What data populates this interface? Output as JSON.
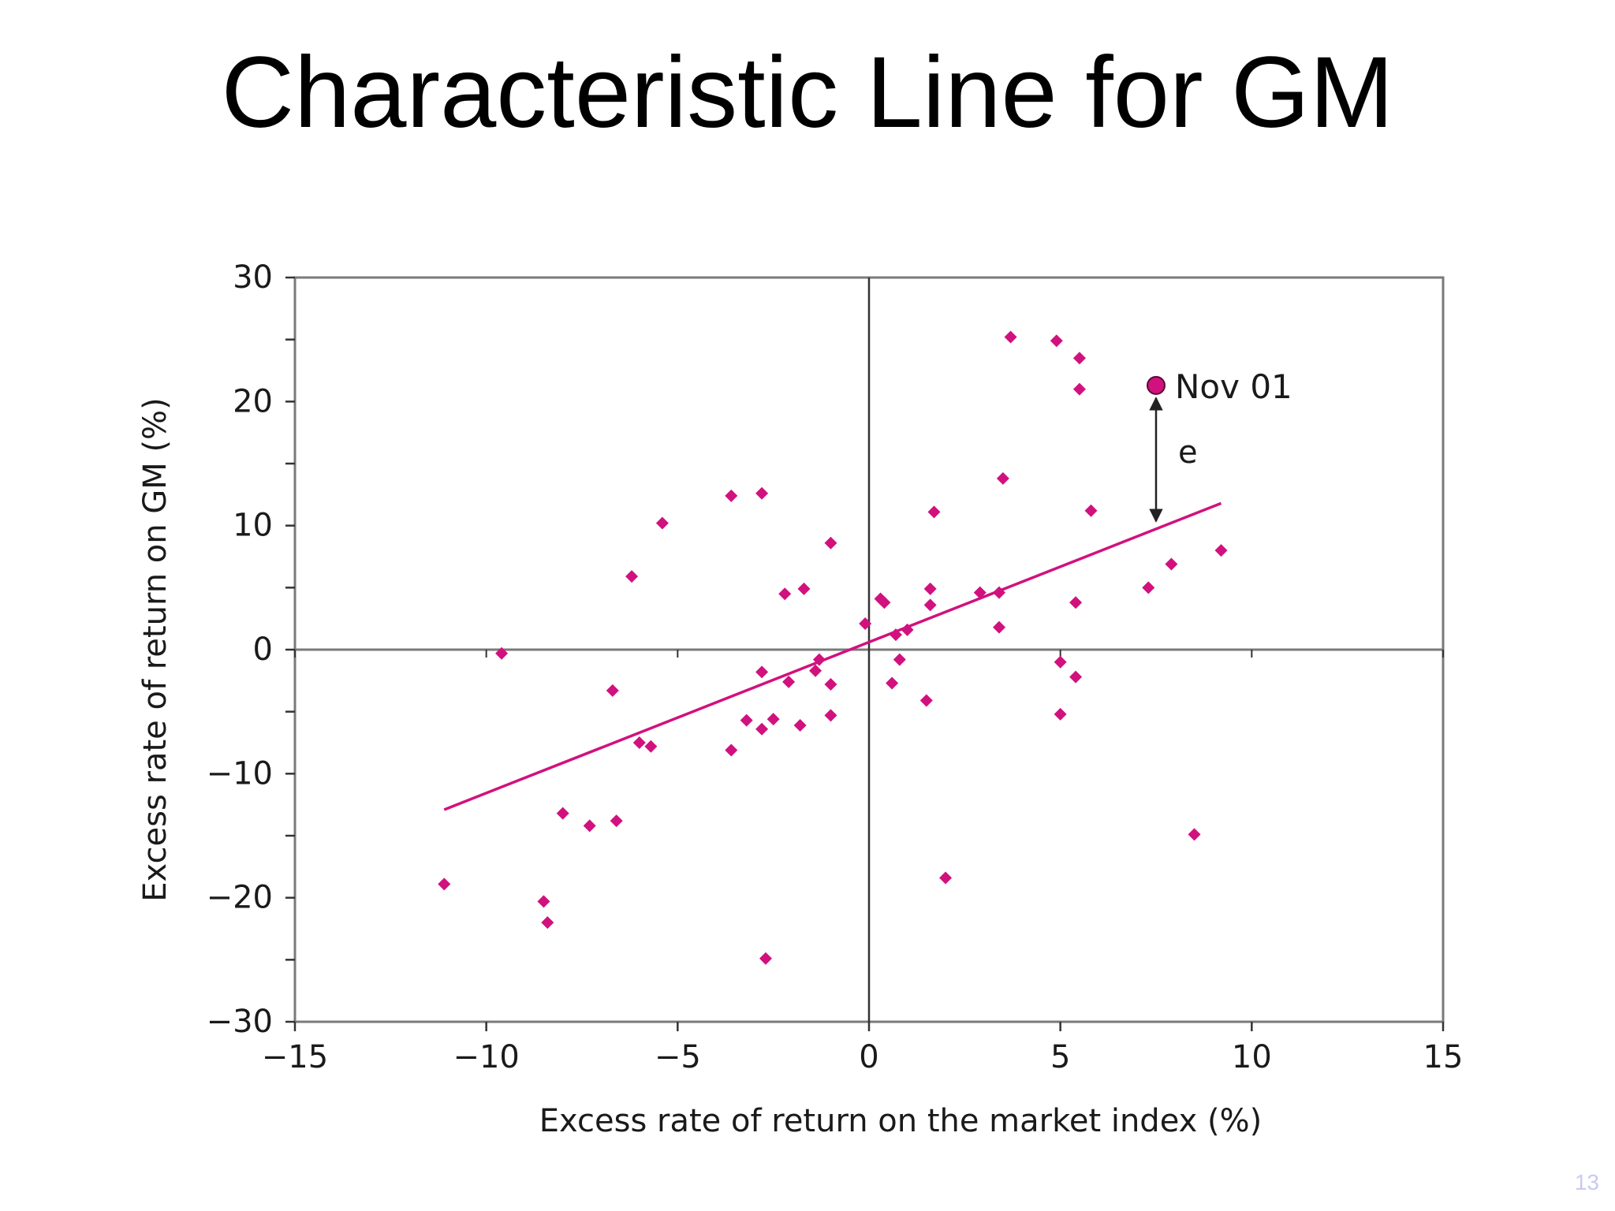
{
  "slide": {
    "title": "Characteristic Line for GM",
    "page_number": "13"
  },
  "colors": {
    "accent": "#d1117e",
    "axis": "#333333",
    "frame": "#7a7a7a",
    "text": "#1a1a1a"
  },
  "chart_data": {
    "type": "scatter",
    "title": "",
    "xlabel": "Excess rate of return on the market index (%)",
    "ylabel": "Excess rate of return on GM (%)",
    "xlim": [
      -15,
      15
    ],
    "ylim": [
      -30,
      30
    ],
    "xticks": [
      -15,
      -10,
      -5,
      0,
      5,
      10,
      15
    ],
    "xtick_labels": [
      "−15",
      "−10",
      "−5",
      "0",
      "5",
      "10",
      "15"
    ],
    "yticks": [
      -30,
      -20,
      -10,
      0,
      10,
      20,
      30
    ],
    "ytick_labels": [
      "−30",
      "−20",
      "−10",
      "0",
      "10",
      "20",
      "30"
    ],
    "grid": false,
    "marker": "diamond",
    "points": [
      {
        "x": 3.7,
        "y": 25.2
      },
      {
        "x": 4.9,
        "y": 24.9
      },
      {
        "x": 5.5,
        "y": 23.5
      },
      {
        "x": 5.5,
        "y": 21.0
      },
      {
        "x": -3.6,
        "y": 12.4
      },
      {
        "x": -2.8,
        "y": 12.6
      },
      {
        "x": -5.4,
        "y": 10.2
      },
      {
        "x": 3.5,
        "y": 13.8
      },
      {
        "x": 5.8,
        "y": 11.2
      },
      {
        "x": 1.7,
        "y": 11.1
      },
      {
        "x": -1.0,
        "y": 8.6
      },
      {
        "x": 9.2,
        "y": 8.0
      },
      {
        "x": -6.2,
        "y": 5.9
      },
      {
        "x": -2.2,
        "y": 4.5
      },
      {
        "x": -1.7,
        "y": 4.9
      },
      {
        "x": 7.9,
        "y": 6.9
      },
      {
        "x": 7.3,
        "y": 5.0
      },
      {
        "x": 1.6,
        "y": 4.9
      },
      {
        "x": 1.6,
        "y": 3.6
      },
      {
        "x": 2.9,
        "y": 4.6
      },
      {
        "x": 3.4,
        "y": 4.6
      },
      {
        "x": 5.4,
        "y": 3.8
      },
      {
        "x": 0.3,
        "y": 4.1
      },
      {
        "x": 0.4,
        "y": 3.8
      },
      {
        "x": -0.1,
        "y": 2.1
      },
      {
        "x": 3.4,
        "y": 1.8
      },
      {
        "x": 1.0,
        "y": 1.6
      },
      {
        "x": 0.7,
        "y": 1.2
      },
      {
        "x": -9.6,
        "y": -0.3
      },
      {
        "x": -1.3,
        "y": -0.8
      },
      {
        "x": 0.8,
        "y": -0.8
      },
      {
        "x": -1.4,
        "y": -1.7
      },
      {
        "x": -2.8,
        "y": -1.8
      },
      {
        "x": -2.1,
        "y": -2.6
      },
      {
        "x": -1.0,
        "y": -2.8
      },
      {
        "x": 0.6,
        "y": -2.7
      },
      {
        "x": 5.0,
        "y": -1.0
      },
      {
        "x": 5.4,
        "y": -2.2
      },
      {
        "x": -6.7,
        "y": -3.3
      },
      {
        "x": 1.5,
        "y": -4.1
      },
      {
        "x": -1.0,
        "y": -5.3
      },
      {
        "x": 5.0,
        "y": -5.2
      },
      {
        "x": -3.2,
        "y": -5.7
      },
      {
        "x": -2.5,
        "y": -5.6
      },
      {
        "x": -2.8,
        "y": -6.4
      },
      {
        "x": -1.8,
        "y": -6.1
      },
      {
        "x": -6.0,
        "y": -7.5
      },
      {
        "x": -5.7,
        "y": -7.8
      },
      {
        "x": -3.6,
        "y": -8.1
      },
      {
        "x": -8.0,
        "y": -13.2
      },
      {
        "x": -7.3,
        "y": -14.2
      },
      {
        "x": -6.6,
        "y": -13.8
      },
      {
        "x": 8.5,
        "y": -14.9
      },
      {
        "x": -11.1,
        "y": -18.9
      },
      {
        "x": -8.5,
        "y": -20.3
      },
      {
        "x": -8.4,
        "y": -22.0
      },
      {
        "x": 2.0,
        "y": -18.4
      },
      {
        "x": -2.7,
        "y": -24.9
      }
    ],
    "highlighted_point": {
      "label": "Nov 01",
      "x": 7.5,
      "y": 21.3
    },
    "characteristic_line": {
      "x": [
        -11.1,
        9.2
      ],
      "y": [
        -12.9,
        11.8
      ]
    },
    "residual_annotation": {
      "label": "e",
      "x": 7.5,
      "y_from": 10.1,
      "y_to": 21.3
    }
  }
}
